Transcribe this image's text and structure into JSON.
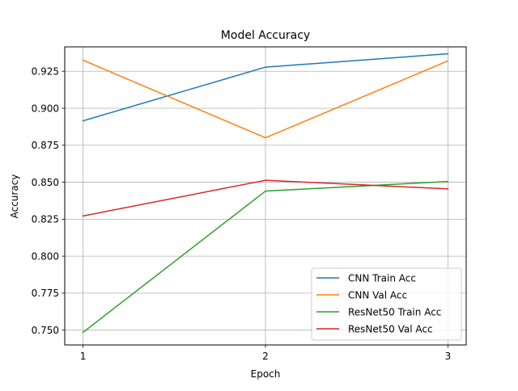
{
  "chart_data": {
    "type": "line",
    "title": "Model Accuracy",
    "xlabel": "Epoch",
    "ylabel": "Accuracy",
    "x": [
      1,
      2,
      3
    ],
    "xticks": [
      "1",
      "2",
      "3"
    ],
    "yticks": [
      "0.750",
      "0.775",
      "0.800",
      "0.825",
      "0.850",
      "0.875",
      "0.900",
      "0.925"
    ],
    "xlim": [
      0.9,
      3.1
    ],
    "ylim": [
      0.74,
      0.9415
    ],
    "grid": true,
    "legend_position": "lower-right",
    "series": [
      {
        "name": "CNN Train Acc",
        "color": "#1f77b4",
        "values": [
          0.8915,
          0.9278,
          0.9368
        ]
      },
      {
        "name": "CNN Val Acc",
        "color": "#ff7f0e",
        "values": [
          0.9325,
          0.88,
          0.932
        ]
      },
      {
        "name": "ResNet50 Train Acc",
        "color": "#2ca02c",
        "values": [
          0.7485,
          0.844,
          0.8505
        ]
      },
      {
        "name": "ResNet50 Val Acc",
        "color": "#d62728",
        "values": [
          0.8272,
          0.8513,
          0.8455
        ]
      }
    ]
  }
}
